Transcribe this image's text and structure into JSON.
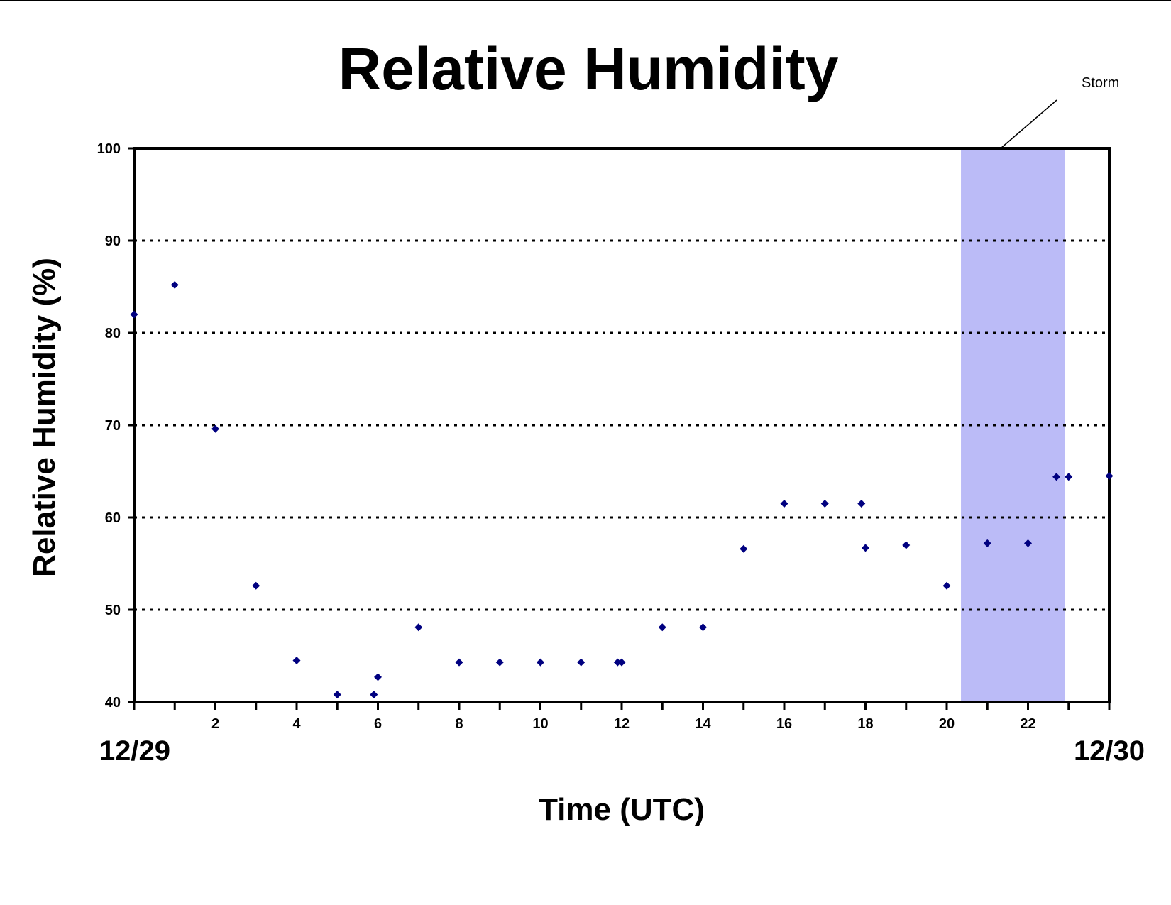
{
  "chart_data": {
    "type": "scatter",
    "title": "Relative Humidity",
    "xlabel": "Time (UTC)",
    "ylabel": "Relative Humidity (%)",
    "xlim": [
      0,
      24
    ],
    "ylim": [
      40,
      100
    ],
    "x_ticks": [
      2,
      4,
      6,
      8,
      10,
      12,
      14,
      16,
      18,
      20,
      22
    ],
    "y_ticks": [
      40,
      50,
      60,
      70,
      80,
      90,
      100
    ],
    "date_labels": {
      "start": "12/29",
      "end": "12/30"
    },
    "grid": "horizontal dotted",
    "series": [
      {
        "color": "#000080",
        "marker": "diamond",
        "points": [
          {
            "x": 0,
            "y": 82
          },
          {
            "x": 1,
            "y": 85.2
          },
          {
            "x": 2,
            "y": 69.6
          },
          {
            "x": 3,
            "y": 52.6
          },
          {
            "x": 4,
            "y": 44.5
          },
          {
            "x": 5,
            "y": 40.8
          },
          {
            "x": 5.9,
            "y": 40.8
          },
          {
            "x": 6,
            "y": 42.7
          },
          {
            "x": 7,
            "y": 48.1
          },
          {
            "x": 8,
            "y": 44.3
          },
          {
            "x": 9,
            "y": 44.3
          },
          {
            "x": 10,
            "y": 44.3
          },
          {
            "x": 11,
            "y": 44.3
          },
          {
            "x": 11.9,
            "y": 44.3
          },
          {
            "x": 12,
            "y": 44.3
          },
          {
            "x": 13,
            "y": 48.1
          },
          {
            "x": 14,
            "y": 48.1
          },
          {
            "x": 15,
            "y": 56.6
          },
          {
            "x": 16,
            "y": 61.5
          },
          {
            "x": 17,
            "y": 61.5
          },
          {
            "x": 17.9,
            "y": 61.5
          },
          {
            "x": 18,
            "y": 56.7
          },
          {
            "x": 19,
            "y": 57
          },
          {
            "x": 20,
            "y": 52.6
          },
          {
            "x": 21,
            "y": 57.2
          },
          {
            "x": 22,
            "y": 57.2
          },
          {
            "x": 22.7,
            "y": 64.4
          },
          {
            "x": 23,
            "y": 64.4
          },
          {
            "x": 24,
            "y": 64.5
          }
        ]
      }
    ],
    "annotations": [
      {
        "label": "Storm",
        "x_start": 20.35,
        "x_end": 22.9,
        "color": "#BBBBF7"
      }
    ]
  },
  "colors": {
    "background": "#ffffff",
    "axis": "#000000",
    "marker": "#000080",
    "storm_band": "#BBBBF7"
  }
}
